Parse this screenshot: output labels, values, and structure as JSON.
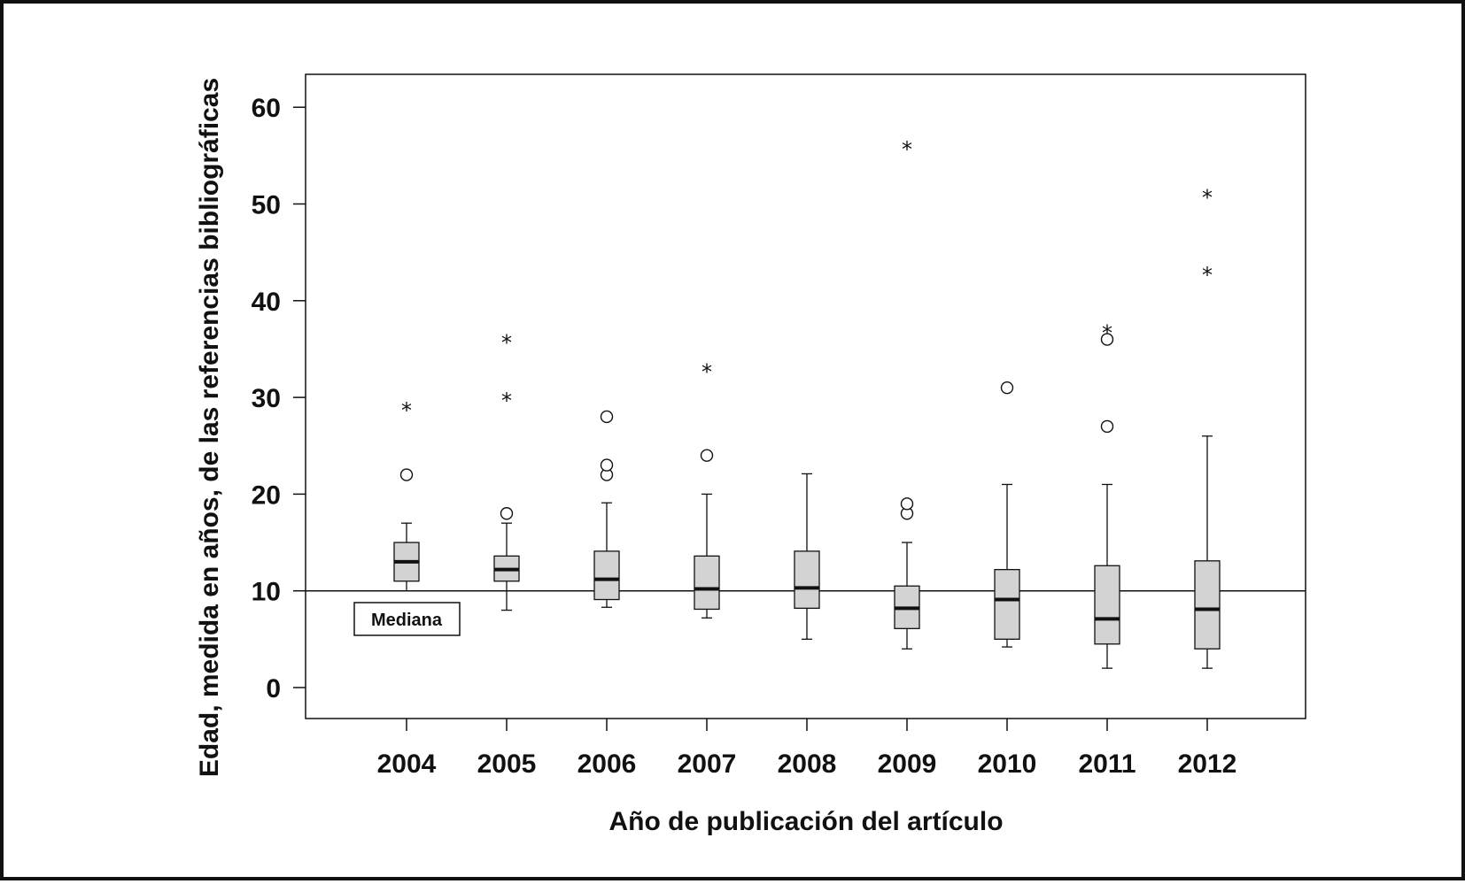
{
  "chart_data": {
    "type": "box",
    "xlabel": "Año de publicación del artículo",
    "ylabel": "Edad, medida en años, de las referencias bibliográficas",
    "ylim": [
      -3.2,
      63.5
    ],
    "yticks": [
      0,
      10,
      20,
      30,
      40,
      50,
      60
    ],
    "categories": [
      "2004",
      "2005",
      "2006",
      "2007",
      "2008",
      "2009",
      "2010",
      "2011",
      "2012"
    ],
    "boxes": [
      {
        "year": "2004",
        "whisker_low": 10,
        "q1": 11,
        "median": 13,
        "q3": 15,
        "whisker_high": 17,
        "outliers": [
          22
        ],
        "extremes": [
          29
        ]
      },
      {
        "year": "2005",
        "whisker_low": 8,
        "q1": 11,
        "median": 12.2,
        "q3": 13.6,
        "whisker_high": 17,
        "outliers": [
          18
        ],
        "extremes": [
          30,
          36
        ]
      },
      {
        "year": "2006",
        "whisker_low": 8.3,
        "q1": 9.1,
        "median": 11.2,
        "q3": 14.1,
        "whisker_high": 19.1,
        "outliers": [
          22,
          23,
          28
        ],
        "extremes": []
      },
      {
        "year": "2007",
        "whisker_low": 7.2,
        "q1": 8.1,
        "median": 10.2,
        "q3": 13.6,
        "whisker_high": 20,
        "outliers": [
          24
        ],
        "extremes": [
          33
        ]
      },
      {
        "year": "2008",
        "whisker_low": 5,
        "q1": 8.2,
        "median": 10.3,
        "q3": 14.1,
        "whisker_high": 22.1,
        "outliers": [],
        "extremes": []
      },
      {
        "year": "2009",
        "whisker_low": 4,
        "q1": 6.1,
        "median": 8.2,
        "q3": 10.5,
        "whisker_high": 15,
        "outliers": [
          18,
          19
        ],
        "extremes": [
          56
        ]
      },
      {
        "year": "2010",
        "whisker_low": 4.2,
        "q1": 5,
        "median": 9.1,
        "q3": 12.2,
        "whisker_high": 21,
        "outliers": [
          31
        ],
        "extremes": []
      },
      {
        "year": "2011",
        "whisker_low": 2,
        "q1": 4.5,
        "median": 7.1,
        "q3": 12.6,
        "whisker_high": 21,
        "outliers": [
          27,
          36
        ],
        "extremes": [
          37
        ]
      },
      {
        "year": "2012",
        "whisker_low": 2,
        "q1": 4,
        "median": 8.1,
        "q3": 13.1,
        "whisker_high": 26,
        "outliers": [],
        "extremes": [
          43,
          51
        ]
      }
    ],
    "reference_line": {
      "y": 10,
      "label": "Mediana"
    },
    "grid": false,
    "box_color": "#d3d3d3",
    "line_color": "#111111"
  }
}
